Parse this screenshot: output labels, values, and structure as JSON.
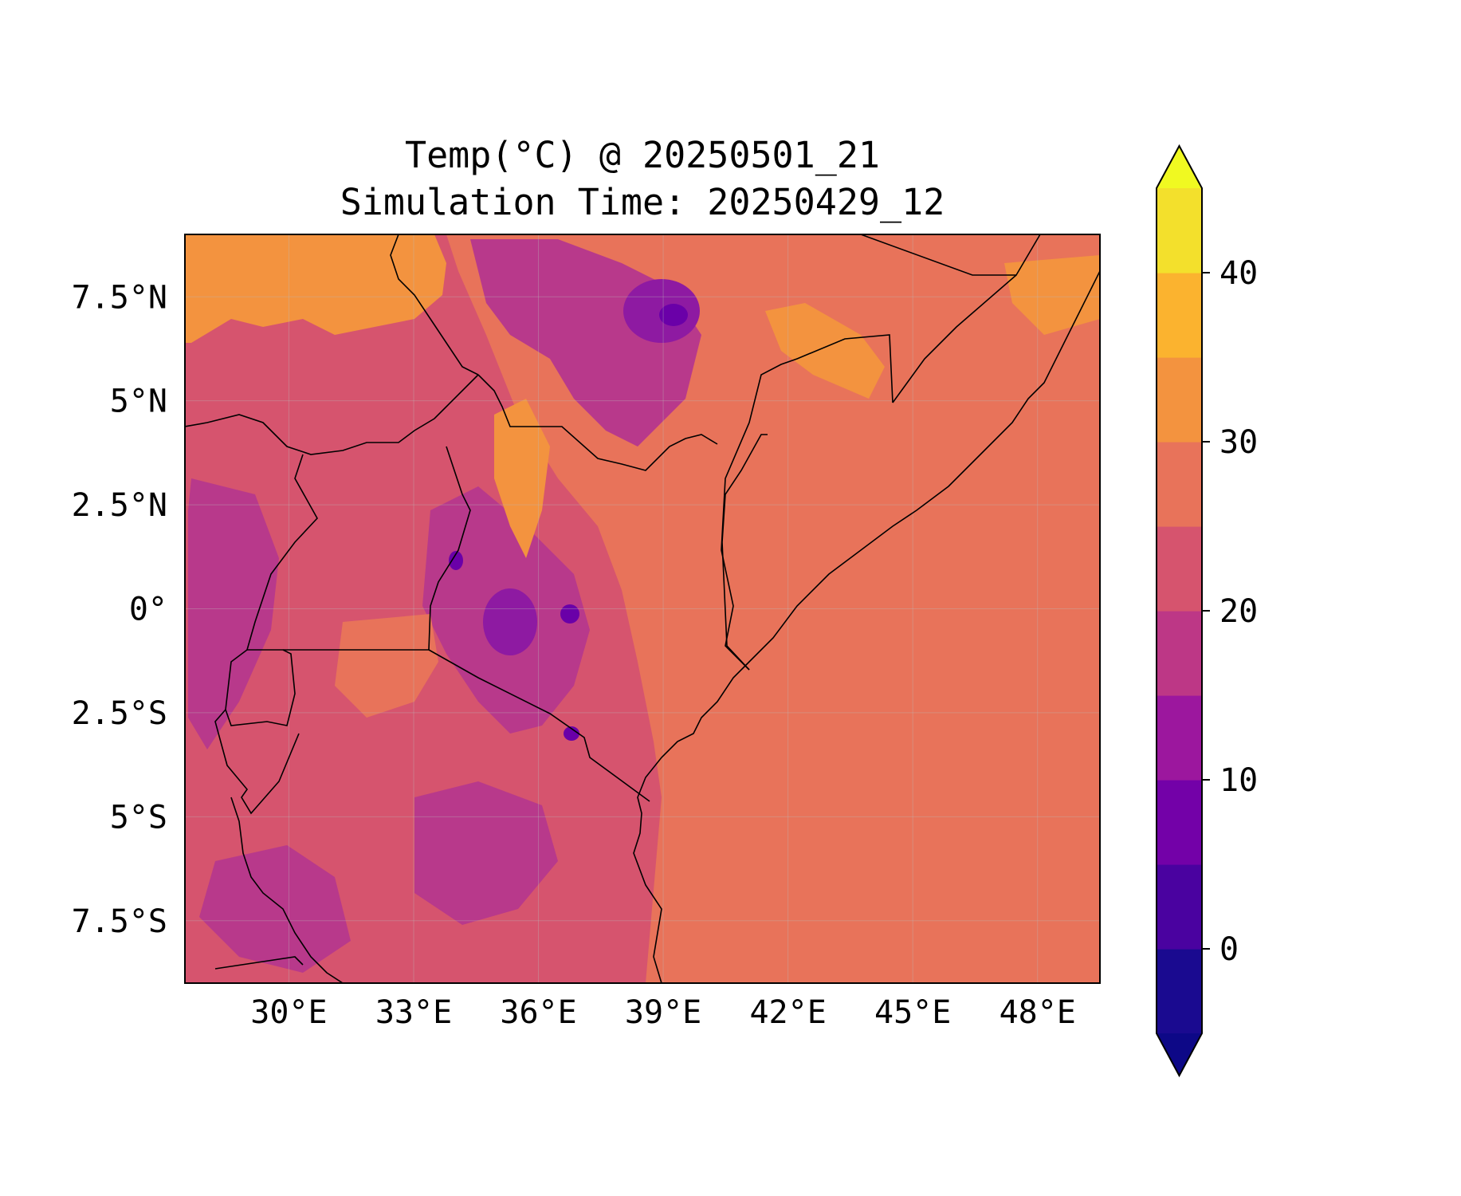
{
  "figure": {
    "title_line1": "Temp(°C) @ 20250501_21",
    "title_line2": "Simulation Time: 20250429_12"
  },
  "map": {
    "extent": {
      "lon": [
        27.5,
        49.5
      ],
      "lat": [
        -9.0,
        9.0
      ]
    },
    "x_ticks": [
      {
        "value": 30,
        "label": "30°E"
      },
      {
        "value": 33,
        "label": "33°E"
      },
      {
        "value": 36,
        "label": "36°E"
      },
      {
        "value": 39,
        "label": "39°E"
      },
      {
        "value": 42,
        "label": "42°E"
      },
      {
        "value": 45,
        "label": "45°E"
      },
      {
        "value": 48,
        "label": "48°E"
      }
    ],
    "y_ticks": [
      {
        "value": 7.5,
        "label": "7.5°N"
      },
      {
        "value": 5,
        "label": "5°N"
      },
      {
        "value": 2.5,
        "label": "2.5°N"
      },
      {
        "value": 0,
        "label": "0°"
      },
      {
        "value": -2.5,
        "label": "2.5°S"
      },
      {
        "value": -5,
        "label": "5°S"
      },
      {
        "value": -7.5,
        "label": "7.5°S"
      }
    ],
    "colors": {
      "ocean_lowland": "#e8735a",
      "mid": "#d6546e",
      "cool": "#b8398b",
      "cold": "#8e1aa2",
      "coldest": "#6a00a8",
      "hot": "#f3933f"
    }
  },
  "colorbar": {
    "ticks": [
      {
        "value": 0,
        "label": "0"
      },
      {
        "value": 10,
        "label": "10"
      },
      {
        "value": 20,
        "label": "20"
      },
      {
        "value": 30,
        "label": "30"
      },
      {
        "value": 40,
        "label": "40"
      }
    ],
    "range": [
      -5,
      45
    ],
    "bands": [
      {
        "lo": -5,
        "hi": 0,
        "color": "#1a0a90"
      },
      {
        "lo": 0,
        "hi": 5,
        "color": "#4a02a0"
      },
      {
        "lo": 5,
        "hi": 10,
        "color": "#7301a8"
      },
      {
        "lo": 10,
        "hi": 15,
        "color": "#9c179e"
      },
      {
        "lo": 15,
        "hi": 20,
        "color": "#bd3786"
      },
      {
        "lo": 20,
        "hi": 25,
        "color": "#d6546e"
      },
      {
        "lo": 25,
        "hi": 30,
        "color": "#e8735a"
      },
      {
        "lo": 30,
        "hi": 35,
        "color": "#f3933f"
      },
      {
        "lo": 35,
        "hi": 40,
        "color": "#fbb32f"
      },
      {
        "lo": 40,
        "hi": 45,
        "color": "#f3e02c"
      }
    ],
    "under_color": "#0d0887",
    "over_color": "#f0f921"
  }
}
